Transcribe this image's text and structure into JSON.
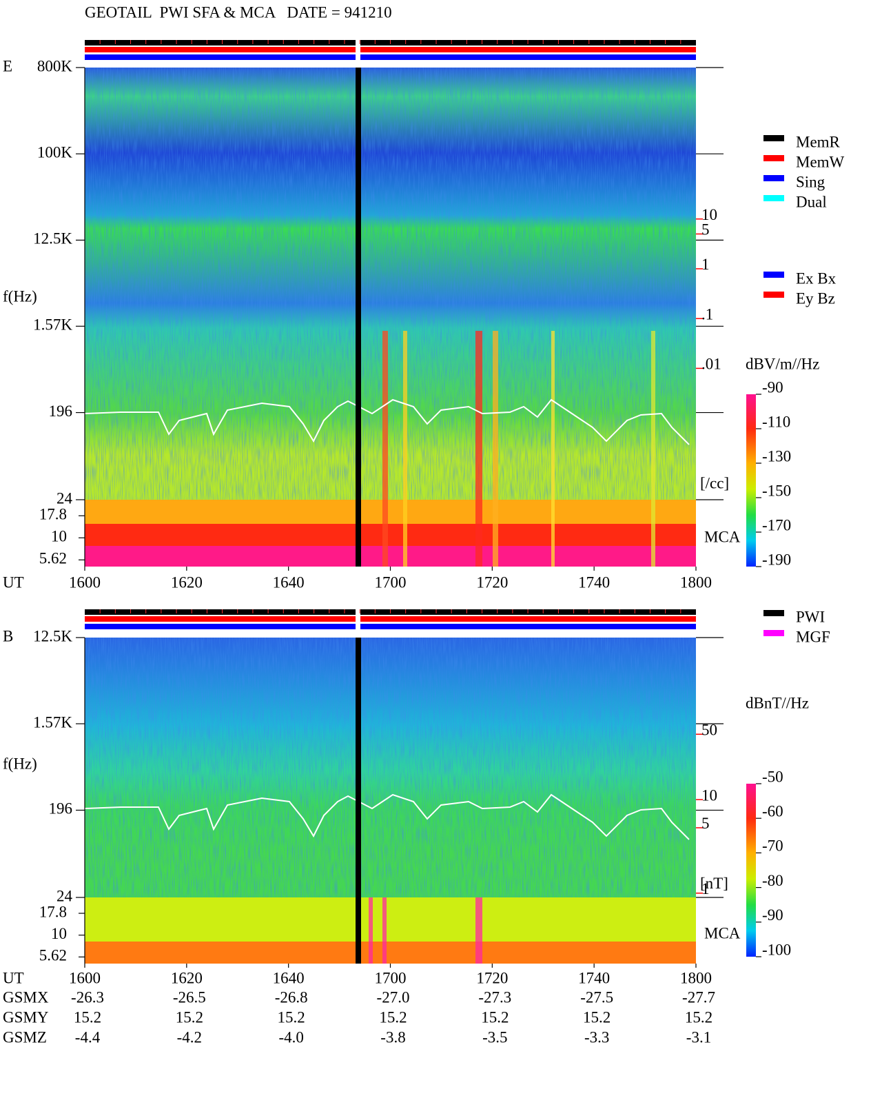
{
  "title": "GEOTAIL  PWI SFA & MCA   DATE = 941210",
  "chart_data": [
    {
      "type": "spectrogram",
      "panel_label": "E",
      "y_label": "f(Hz)",
      "x_label": "UT",
      "log_y": true,
      "ylim": [
        24,
        800000
      ],
      "yticks": [
        {
          "value": 800000,
          "label": "800K"
        },
        {
          "value": 100000,
          "label": "100K"
        },
        {
          "value": 12500,
          "label": "12.5K"
        },
        {
          "value": 1570,
          "label": "1.57K"
        },
        196,
        24
      ],
      "mca_label": "MCA",
      "mca_ticks": [
        17.8,
        10,
        5.62
      ],
      "xticks": [
        "1600",
        "1620",
        "1640",
        "1700",
        "1720",
        "1740",
        "1800"
      ],
      "y2_label": "[/cc]",
      "y2_color": "#ff0000",
      "y2lim": [
        2.3e-05,
        11000
      ],
      "y2ticks": [
        10,
        5,
        1,
        {
          "value": 0.1,
          "label": ".1"
        },
        {
          "value": 0.01,
          "label": ".01"
        }
      ],
      "colorbar": {
        "label": "dBV/m//Hz",
        "clim": [
          -190,
          -90
        ],
        "ticks": [
          -90,
          -110,
          -130,
          -150,
          -170,
          -190
        ]
      },
      "legend": [
        {
          "name": "MemR",
          "color": "#000000"
        },
        {
          "name": "MemW",
          "color": "#ff0000"
        },
        {
          "name": "Sing",
          "color": "#0000ff"
        },
        {
          "name": "Dual",
          "color": "#00ffff"
        }
      ],
      "legend2": [
        {
          "name": "Ex Bx",
          "color": "#0000ff"
        },
        {
          "name": "Ey Bz",
          "color": "#ff0000"
        }
      ]
    },
    {
      "type": "spectrogram",
      "panel_label": "B",
      "y_label": "f(Hz)",
      "x_label": "UT",
      "log_y": true,
      "ylim": [
        24,
        12500
      ],
      "yticks": [
        {
          "value": 12500,
          "label": "12.5K"
        },
        {
          "value": 1570,
          "label": "1.57K"
        },
        196,
        24
      ],
      "mca_label": "MCA",
      "mca_ticks": [
        17.8,
        10,
        5.62
      ],
      "xticks": [
        "1600",
        "1620",
        "1640",
        "1700",
        "1720",
        "1740",
        "1800"
      ],
      "y2_label": "[nT]",
      "y2_color": "#ff0000",
      "y2lim": [
        0.9,
        540
      ],
      "y2ticks": [
        50,
        10,
        5,
        1
      ],
      "colorbar": {
        "label": "dBnT//Hz",
        "clim": [
          -100,
          -50
        ],
        "ticks": [
          -50,
          -60,
          -70,
          -80,
          -90,
          -100
        ]
      },
      "legend": [
        {
          "name": "PWI",
          "color": "#000000"
        },
        {
          "name": "MGF",
          "color": "#ff00ff"
        }
      ]
    }
  ],
  "orbit_table": {
    "row_labels": [
      "GSMX",
      "GSMY",
      "GSMZ"
    ],
    "rows": [
      [
        "-26.3",
        "-26.5",
        "-26.8",
        "-27.0",
        "-27.3",
        "-27.5",
        "-27.7"
      ],
      [
        "15.2",
        "15.2",
        "15.2",
        "15.2",
        "15.2",
        "15.2",
        "15.2"
      ],
      [
        "-4.4",
        "-4.2",
        "-4.0",
        "-3.8",
        "-3.5",
        "-3.3",
        "-3.1"
      ]
    ]
  }
}
